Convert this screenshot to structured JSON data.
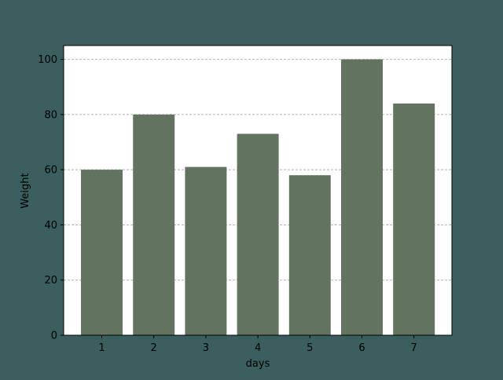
{
  "chart_data": {
    "type": "bar",
    "title": "",
    "xlabel": "days",
    "ylabel": "Weight",
    "categories": [
      "1",
      "2",
      "3",
      "4",
      "5",
      "6",
      "7"
    ],
    "values": [
      60,
      80,
      61,
      73,
      58,
      100,
      84
    ],
    "ylim": [
      0,
      105
    ],
    "yticks": [
      "0",
      "20",
      "40",
      "60",
      "80",
      "100"
    ],
    "grid": "y-dashed",
    "legend": "none",
    "colors": {
      "background": "#3b5f5f",
      "plot_area": "#ffffff",
      "bar": "#627460",
      "grid": "#b0b0b0",
      "axis": "#000000"
    }
  }
}
